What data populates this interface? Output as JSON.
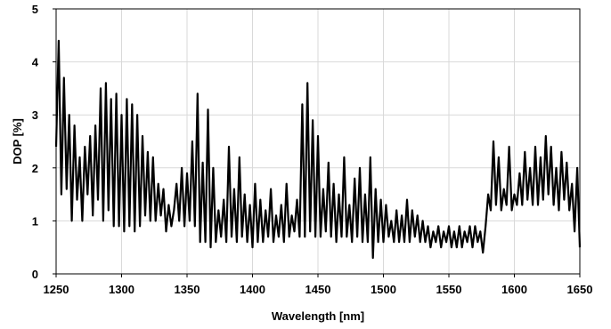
{
  "chart_data": {
    "type": "line",
    "xlabel": "Wavelength [nm]",
    "ylabel": "DOP [%]",
    "xlim": [
      1250,
      1650
    ],
    "ylim": [
      0,
      5
    ],
    "x_ticks": [
      "1250",
      "1300",
      "1350",
      "1400",
      "1450",
      "1500",
      "1550",
      "1600",
      "1650"
    ],
    "y_ticks": [
      "0",
      "1",
      "2",
      "3",
      "4",
      "5"
    ],
    "grid": true,
    "legend": "none",
    "series": [
      {
        "color": "#000000",
        "x": [
          1250,
          1252,
          1254,
          1256,
          1258,
          1260,
          1262,
          1264,
          1266,
          1268,
          1270,
          1272,
          1274,
          1276,
          1278,
          1280,
          1282,
          1284,
          1286,
          1288,
          1290,
          1292,
          1294,
          1296,
          1298,
          1300,
          1302,
          1304,
          1306,
          1308,
          1310,
          1312,
          1314,
          1316,
          1318,
          1320,
          1322,
          1324,
          1326,
          1328,
          1330,
          1332,
          1334,
          1336,
          1338,
          1340,
          1342,
          1344,
          1346,
          1348,
          1350,
          1352,
          1354,
          1356,
          1358,
          1360,
          1362,
          1364,
          1366,
          1368,
          1370,
          1372,
          1374,
          1376,
          1378,
          1380,
          1382,
          1384,
          1386,
          1388,
          1390,
          1392,
          1394,
          1396,
          1398,
          1400,
          1402,
          1404,
          1406,
          1408,
          1410,
          1412,
          1414,
          1416,
          1418,
          1420,
          1422,
          1424,
          1426,
          1428,
          1430,
          1432,
          1434,
          1436,
          1438,
          1440,
          1442,
          1444,
          1446,
          1448,
          1450,
          1452,
          1454,
          1456,
          1458,
          1460,
          1462,
          1464,
          1466,
          1468,
          1470,
          1472,
          1474,
          1476,
          1478,
          1480,
          1482,
          1484,
          1486,
          1488,
          1490,
          1492,
          1494,
          1496,
          1498,
          1500,
          1502,
          1504,
          1506,
          1508,
          1510,
          1512,
          1514,
          1516,
          1518,
          1520,
          1522,
          1524,
          1526,
          1528,
          1530,
          1532,
          1534,
          1536,
          1538,
          1540,
          1542,
          1544,
          1546,
          1548,
          1550,
          1552,
          1554,
          1556,
          1558,
          1560,
          1562,
          1564,
          1566,
          1568,
          1570,
          1572,
          1574,
          1576,
          1578,
          1580,
          1582,
          1584,
          1586,
          1588,
          1590,
          1592,
          1594,
          1596,
          1598,
          1600,
          1602,
          1604,
          1606,
          1608,
          1610,
          1612,
          1614,
          1616,
          1618,
          1620,
          1622,
          1624,
          1626,
          1628,
          1630,
          1632,
          1634,
          1636,
          1638,
          1640,
          1642,
          1644,
          1646,
          1648,
          1650
        ],
        "y": [
          2.4,
          4.4,
          1.5,
          3.7,
          1.6,
          3.0,
          1.0,
          2.8,
          1.4,
          2.2,
          1.0,
          2.4,
          1.5,
          2.6,
          1.1,
          2.8,
          1.4,
          3.5,
          1.0,
          3.6,
          1.2,
          3.3,
          0.9,
          3.4,
          0.9,
          3.0,
          0.8,
          3.3,
          0.9,
          3.2,
          0.8,
          3.0,
          0.9,
          2.6,
          1.1,
          2.3,
          1.0,
          2.2,
          1.0,
          1.7,
          1.1,
          1.6,
          0.8,
          1.3,
          0.9,
          1.2,
          1.7,
          1.0,
          2.0,
          0.9,
          1.9,
          1.0,
          2.5,
          0.9,
          3.4,
          0.6,
          2.1,
          0.6,
          3.1,
          0.5,
          2.0,
          0.6,
          1.2,
          0.7,
          1.4,
          0.6,
          2.4,
          0.7,
          1.6,
          0.6,
          2.2,
          0.7,
          1.5,
          0.6,
          1.3,
          0.5,
          1.7,
          0.6,
          1.4,
          0.6,
          1.2,
          0.7,
          1.6,
          0.6,
          1.1,
          0.7,
          1.3,
          0.6,
          1.7,
          0.7,
          1.1,
          0.8,
          1.4,
          0.7,
          3.2,
          0.7,
          3.6,
          0.8,
          2.9,
          0.7,
          2.6,
          0.7,
          1.6,
          0.8,
          2.1,
          0.7,
          1.7,
          0.6,
          1.5,
          0.7,
          2.2,
          0.7,
          1.3,
          0.6,
          1.8,
          0.7,
          2.0,
          0.6,
          1.5,
          0.6,
          2.2,
          0.3,
          1.6,
          0.6,
          1.4,
          0.6,
          1.3,
          0.7,
          1.0,
          0.6,
          1.2,
          0.6,
          1.1,
          0.6,
          1.4,
          0.6,
          1.2,
          0.7,
          1.1,
          0.6,
          1.0,
          0.6,
          0.9,
          0.5,
          0.8,
          0.6,
          0.9,
          0.5,
          0.8,
          0.6,
          0.9,
          0.5,
          0.8,
          0.5,
          0.9,
          0.5,
          0.8,
          0.6,
          0.9,
          0.5,
          0.9,
          0.6,
          0.8,
          0.4,
          0.9,
          1.5,
          1.2,
          2.5,
          1.3,
          2.2,
          1.2,
          1.6,
          1.3,
          2.4,
          1.2,
          1.5,
          1.3,
          1.9,
          1.3,
          2.3,
          1.4,
          2.0,
          1.3,
          2.4,
          1.3,
          2.2,
          1.4,
          2.6,
          1.5,
          2.4,
          1.3,
          2.0,
          1.2,
          2.3,
          1.4,
          2.1,
          1.2,
          1.7,
          0.8,
          2.0,
          0.5
        ]
      }
    ]
  }
}
